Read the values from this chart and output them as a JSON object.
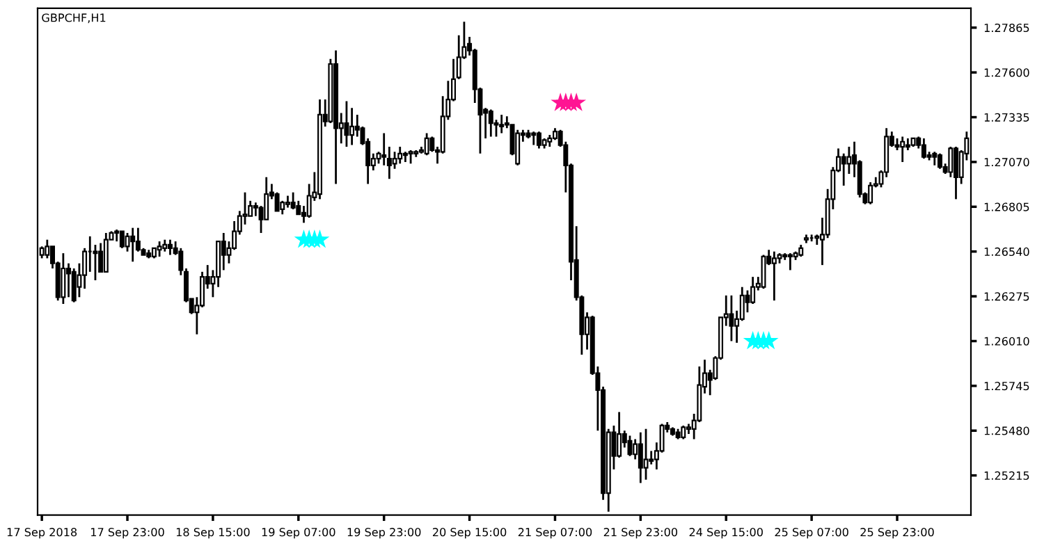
{
  "chart_data": {
    "type": "candlestick",
    "title": "GBPCHF,H1",
    "categories": [
      "17 Sep 2018",
      null,
      null,
      null,
      null,
      null,
      null,
      null,
      null,
      null,
      null,
      null,
      null,
      null,
      null,
      null,
      "17 Sep 23:00",
      null,
      null,
      null,
      null,
      null,
      null,
      null,
      null,
      null,
      null,
      null,
      null,
      null,
      null,
      null,
      "18 Sep 15:00",
      null,
      null,
      null,
      null,
      null,
      null,
      null,
      null,
      null,
      null,
      null,
      null,
      null,
      null,
      null,
      "19 Sep 07:00",
      null,
      null,
      null,
      null,
      null,
      null,
      null,
      null,
      null,
      null,
      null,
      null,
      null,
      null,
      null,
      "19 Sep 23:00",
      null,
      null,
      null,
      null,
      null,
      null,
      null,
      null,
      null,
      null,
      null,
      null,
      null,
      null,
      null,
      "20 Sep 15:00",
      null,
      null,
      null,
      null,
      null,
      null,
      null,
      null,
      null,
      null,
      null,
      null,
      null,
      null,
      null,
      "21 Sep 07:00",
      null,
      null,
      null,
      null,
      null,
      null,
      null,
      null,
      null,
      null,
      null,
      null,
      null,
      null,
      null,
      "21 Sep 23:00",
      null,
      null,
      null,
      null,
      null,
      null,
      null,
      null,
      null,
      null,
      null,
      null,
      null,
      null,
      null,
      "24 Sep 15:00",
      null,
      null,
      null,
      null,
      null,
      null,
      null,
      null,
      null,
      null,
      null,
      null,
      null,
      null,
      null,
      "25 Sep 07:00",
      null,
      null,
      null,
      null,
      null,
      null,
      null,
      null,
      null,
      null,
      null,
      null,
      null,
      null,
      null,
      "25 Sep 23:00",
      null,
      null,
      null,
      null,
      null,
      null,
      null,
      null,
      null,
      null,
      null,
      null,
      null
    ],
    "ohlc": [
      [
        1.2652,
        1.2657,
        1.265,
        1.2656
      ],
      [
        1.2652,
        1.2661,
        1.265,
        1.2657
      ],
      [
        1.2657,
        1.2657,
        1.2644,
        1.2647
      ],
      [
        1.2647,
        1.2648,
        1.2625,
        1.2627
      ],
      [
        1.2627,
        1.2653,
        1.2623,
        1.2644
      ],
      [
        1.2644,
        1.2647,
        1.2627,
        1.2641
      ],
      [
        1.2642,
        1.2644,
        1.2624,
        1.2625
      ],
      [
        1.2633,
        1.2647,
        1.2627,
        1.264
      ],
      [
        1.264,
        1.2656,
        1.2632,
        1.2654
      ],
      [
        1.2654,
        1.2663,
        1.2642,
        1.2654
      ],
      [
        1.2654,
        1.2658,
        1.2637,
        1.2653
      ],
      [
        1.2654,
        1.2659,
        1.2642,
        1.2642
      ],
      [
        1.2642,
        1.2665,
        1.2642,
        1.2661
      ],
      [
        1.2661,
        1.2666,
        1.2661,
        1.2665
      ],
      [
        1.2665,
        1.2667,
        1.266,
        1.2666
      ],
      [
        1.2666,
        1.2666,
        1.2656,
        1.2657
      ],
      [
        1.2657,
        1.2665,
        1.2654,
        1.2663
      ],
      [
        1.2663,
        1.2668,
        1.2648,
        1.266
      ],
      [
        1.266,
        1.2668,
        1.2654,
        1.2655
      ],
      [
        1.2655,
        1.2656,
        1.2652,
        1.2652
      ],
      [
        1.2653,
        1.2655,
        1.265,
        1.2651
      ],
      [
        1.2651,
        1.2656,
        1.265,
        1.2656
      ],
      [
        1.2655,
        1.266,
        1.2651,
        1.2657
      ],
      [
        1.2656,
        1.2661,
        1.2654,
        1.2658
      ],
      [
        1.2658,
        1.2661,
        1.2652,
        1.2656
      ],
      [
        1.2656,
        1.266,
        1.2652,
        1.2653
      ],
      [
        1.2654,
        1.2656,
        1.264,
        1.2643
      ],
      [
        1.2642,
        1.2644,
        1.2624,
        1.2625
      ],
      [
        1.2626,
        1.2626,
        1.2617,
        1.2618
      ],
      [
        1.2618,
        1.2627,
        1.2605,
        1.2622
      ],
      [
        1.2622,
        1.2642,
        1.2621,
        1.2639
      ],
      [
        1.2639,
        1.2646,
        1.2632,
        1.2635
      ],
      [
        1.2635,
        1.2643,
        1.2627,
        1.2639
      ],
      [
        1.2639,
        1.266,
        1.2633,
        1.266
      ],
      [
        1.266,
        1.2665,
        1.2643,
        1.2652
      ],
      [
        1.2652,
        1.266,
        1.2647,
        1.2656
      ],
      [
        1.2656,
        1.2672,
        1.2655,
        1.2666
      ],
      [
        1.2666,
        1.2678,
        1.2664,
        1.2675
      ],
      [
        1.2675,
        1.2689,
        1.267,
        1.2676
      ],
      [
        1.2675,
        1.2684,
        1.2675,
        1.2681
      ],
      [
        1.2681,
        1.2683,
        1.2675,
        1.268
      ],
      [
        1.268,
        1.2681,
        1.2665,
        1.2673
      ],
      [
        1.2673,
        1.2698,
        1.2673,
        1.2688
      ],
      [
        1.2689,
        1.2694,
        1.2685,
        1.2687
      ],
      [
        1.2688,
        1.2689,
        1.2678,
        1.2678
      ],
      [
        1.2679,
        1.2684,
        1.2676,
        1.2683
      ],
      [
        1.2682,
        1.2687,
        1.268,
        1.2683
      ],
      [
        1.2683,
        1.2689,
        1.2679,
        1.268
      ],
      [
        1.2681,
        1.2684,
        1.2676,
        1.2676
      ],
      [
        1.2677,
        1.2681,
        1.2671,
        1.2675
      ],
      [
        1.2675,
        1.2694,
        1.2674,
        1.2687
      ],
      [
        1.2686,
        1.2701,
        1.2684,
        1.2689
      ],
      [
        1.2688,
        1.2744,
        1.2685,
        1.2735
      ],
      [
        1.2735,
        1.2744,
        1.2728,
        1.2731
      ],
      [
        1.2731,
        1.2768,
        1.273,
        1.2765
      ],
      [
        1.2765,
        1.2773,
        1.2694,
        1.2727
      ],
      [
        1.2727,
        1.2736,
        1.2718,
        1.273
      ],
      [
        1.273,
        1.2743,
        1.2716,
        1.2723
      ],
      [
        1.2723,
        1.2739,
        1.2717,
        1.2728
      ],
      [
        1.2728,
        1.2735,
        1.2722,
        1.2726
      ],
      [
        1.2727,
        1.2728,
        1.2717,
        1.2718
      ],
      [
        1.2719,
        1.2721,
        1.2694,
        1.2705
      ],
      [
        1.2705,
        1.2712,
        1.2702,
        1.2709
      ],
      [
        1.2709,
        1.2713,
        1.2706,
        1.2712
      ],
      [
        1.2711,
        1.2724,
        1.2705,
        1.271
      ],
      [
        1.2709,
        1.2716,
        1.2697,
        1.2705
      ],
      [
        1.2706,
        1.2713,
        1.2703,
        1.2709
      ],
      [
        1.2709,
        1.2716,
        1.2706,
        1.2712
      ],
      [
        1.2712,
        1.2713,
        1.2707,
        1.2711
      ],
      [
        1.2712,
        1.2714,
        1.2706,
        1.2713
      ],
      [
        1.2712,
        1.2714,
        1.271,
        1.2713
      ],
      [
        1.2713,
        1.2716,
        1.2712,
        1.2714
      ],
      [
        1.2712,
        1.2724,
        1.2711,
        1.2721
      ],
      [
        1.2721,
        1.2722,
        1.2713,
        1.2714
      ],
      [
        1.2714,
        1.2716,
        1.2706,
        1.2713
      ],
      [
        1.2713,
        1.2746,
        1.2712,
        1.2734
      ],
      [
        1.2734,
        1.2755,
        1.2732,
        1.2744
      ],
      [
        1.2744,
        1.2768,
        1.2743,
        1.2756
      ],
      [
        1.2757,
        1.2782,
        1.2756,
        1.2769
      ],
      [
        1.2769,
        1.279,
        1.2768,
        1.2775
      ],
      [
        1.2777,
        1.2781,
        1.277,
        1.2773
      ],
      [
        1.2773,
        1.2774,
        1.2742,
        1.275
      ],
      [
        1.275,
        1.2751,
        1.2712,
        1.2735
      ],
      [
        1.2738,
        1.2739,
        1.2721,
        1.2736
      ],
      [
        1.2737,
        1.2738,
        1.2722,
        1.273
      ],
      [
        1.273,
        1.2732,
        1.2722,
        1.2729
      ],
      [
        1.2729,
        1.2735,
        1.2724,
        1.2728
      ],
      [
        1.2729,
        1.2734,
        1.2727,
        1.273
      ],
      [
        1.2729,
        1.2729,
        1.2711,
        1.2712
      ],
      [
        1.2706,
        1.2726,
        1.2705,
        1.2724
      ],
      [
        1.2724,
        1.2726,
        1.2719,
        1.2723
      ],
      [
        1.2724,
        1.2726,
        1.2721,
        1.2722
      ],
      [
        1.2724,
        1.2725,
        1.2717,
        1.2723
      ],
      [
        1.2724,
        1.2725,
        1.2715,
        1.2717
      ],
      [
        1.2717,
        1.2721,
        1.2715,
        1.272
      ],
      [
        1.2719,
        1.2723,
        1.2716,
        1.2721
      ],
      [
        1.2721,
        1.2727,
        1.272,
        1.2725
      ],
      [
        1.2725,
        1.2726,
        1.2716,
        1.2717
      ],
      [
        1.2717,
        1.2719,
        1.2689,
        1.2705
      ],
      [
        1.2705,
        1.2706,
        1.2637,
        1.2648
      ],
      [
        1.2649,
        1.2669,
        1.2625,
        1.2627
      ],
      [
        1.2627,
        1.2628,
        1.2593,
        1.2605
      ],
      [
        1.2605,
        1.2618,
        1.2596,
        1.2615
      ],
      [
        1.2615,
        1.2616,
        1.2581,
        1.2582
      ],
      [
        1.2582,
        1.2586,
        1.2548,
        1.2572
      ],
      [
        1.2572,
        1.2574,
        1.2507,
        1.2511
      ],
      [
        1.2511,
        1.2549,
        1.25,
        1.2547
      ],
      [
        1.2547,
        1.2551,
        1.2525,
        1.2533
      ],
      [
        1.2533,
        1.2559,
        1.2532,
        1.2546
      ],
      [
        1.2546,
        1.2548,
        1.2538,
        1.2541
      ],
      [
        1.2542,
        1.2545,
        1.2533,
        1.2534
      ],
      [
        1.2534,
        1.2543,
        1.2531,
        1.254
      ],
      [
        1.254,
        1.2547,
        1.2517,
        1.2526
      ],
      [
        1.2526,
        1.2549,
        1.2519,
        1.2531
      ],
      [
        1.2531,
        1.2536,
        1.2528,
        1.253
      ],
      [
        1.2531,
        1.2541,
        1.2525,
        1.2536
      ],
      [
        1.2536,
        1.2552,
        1.2535,
        1.2551
      ],
      [
        1.2551,
        1.2553,
        1.2547,
        1.2549
      ],
      [
        1.2549,
        1.255,
        1.2545,
        1.2546
      ],
      [
        1.2547,
        1.2549,
        1.2543,
        1.2544
      ],
      [
        1.2544,
        1.2551,
        1.2543,
        1.255
      ],
      [
        1.2549,
        1.2552,
        1.2546,
        1.255
      ],
      [
        1.2549,
        1.2558,
        1.2543,
        1.2554
      ],
      [
        1.2554,
        1.2586,
        1.2553,
        1.2575
      ],
      [
        1.2574,
        1.259,
        1.257,
        1.2582
      ],
      [
        1.2582,
        1.2584,
        1.2569,
        1.2578
      ],
      [
        1.2579,
        1.2592,
        1.2578,
        1.2591
      ],
      [
        1.2591,
        1.2615,
        1.259,
        1.2615
      ],
      [
        1.2615,
        1.2628,
        1.261,
        1.2617
      ],
      [
        1.2617,
        1.2628,
        1.2601,
        1.261
      ],
      [
        1.261,
        1.2619,
        1.26,
        1.2614
      ],
      [
        1.2614,
        1.2633,
        1.2613,
        1.2628
      ],
      [
        1.2628,
        1.2631,
        1.2618,
        1.2624
      ],
      [
        1.2624,
        1.2639,
        1.2623,
        1.2633
      ],
      [
        1.2633,
        1.2639,
        1.2631,
        1.2635
      ],
      [
        1.2633,
        1.2652,
        1.2632,
        1.2651
      ],
      [
        1.2651,
        1.2655,
        1.2646,
        1.2647
      ],
      [
        1.2647,
        1.2654,
        1.2625,
        1.265
      ],
      [
        1.265,
        1.2653,
        1.2647,
        1.2652
      ],
      [
        1.2652,
        1.2653,
        1.2649,
        1.2651
      ],
      [
        1.2651,
        1.2653,
        1.2643,
        1.2652
      ],
      [
        1.2651,
        1.2654,
        1.2649,
        1.2653
      ],
      [
        1.2652,
        1.2658,
        1.2651,
        1.2656
      ],
      [
        1.2661,
        1.2664,
        1.2659,
        1.2662
      ],
      [
        1.2662,
        1.2664,
        1.266,
        1.2662
      ],
      [
        1.2662,
        1.2664,
        1.2658,
        1.2663
      ],
      [
        1.2661,
        1.2674,
        1.2646,
        1.2664
      ],
      [
        1.2664,
        1.2691,
        1.2662,
        1.2685
      ],
      [
        1.2685,
        1.2704,
        1.2679,
        1.2702
      ],
      [
        1.2702,
        1.2715,
        1.2701,
        1.271
      ],
      [
        1.271,
        1.2712,
        1.2693,
        1.2706
      ],
      [
        1.2706,
        1.2716,
        1.27,
        1.271
      ],
      [
        1.2711,
        1.2719,
        1.2698,
        1.2706
      ],
      [
        1.2707,
        1.2708,
        1.2686,
        1.2688
      ],
      [
        1.2688,
        1.2689,
        1.2682,
        1.2683
      ],
      [
        1.2683,
        1.2695,
        1.2682,
        1.2693
      ],
      [
        1.2693,
        1.2698,
        1.2692,
        1.2694
      ],
      [
        1.2694,
        1.2702,
        1.2692,
        1.2701
      ],
      [
        1.2701,
        1.2727,
        1.2698,
        1.2722
      ],
      [
        1.2722,
        1.2725,
        1.2716,
        1.2717
      ],
      [
        1.2717,
        1.2721,
        1.2714,
        1.2716
      ],
      [
        1.2716,
        1.2722,
        1.2707,
        1.2719
      ],
      [
        1.2717,
        1.2721,
        1.2714,
        1.2716
      ],
      [
        1.2717,
        1.2721,
        1.2716,
        1.2721
      ],
      [
        1.2721,
        1.2722,
        1.2715,
        1.2717
      ],
      [
        1.2717,
        1.2721,
        1.2709,
        1.271
      ],
      [
        1.2711,
        1.2713,
        1.2708,
        1.271
      ],
      [
        1.2712,
        1.2713,
        1.2705,
        1.271
      ],
      [
        1.2711,
        1.2712,
        1.2703,
        1.2704
      ],
      [
        1.2704,
        1.2706,
        1.27,
        1.2701
      ],
      [
        1.2701,
        1.2716,
        1.2698,
        1.2715
      ],
      [
        1.2715,
        1.2716,
        1.2685,
        1.2698
      ],
      [
        1.2698,
        1.2714,
        1.2694,
        1.2713
      ],
      [
        1.2712,
        1.2725,
        1.2708,
        1.2721
      ]
    ],
    "series": [
      {
        "type": "scatter",
        "color": "#00ffff",
        "values": [
          null,
          null,
          null,
          null,
          null,
          null,
          null,
          null,
          null,
          null,
          null,
          null,
          null,
          null,
          null,
          null,
          null,
          null,
          null,
          null,
          null,
          null,
          null,
          null,
          null,
          null,
          null,
          null,
          null,
          null,
          null,
          null,
          null,
          null,
          null,
          null,
          null,
          null,
          null,
          null,
          null,
          null,
          null,
          null,
          null,
          null,
          null,
          null,
          null,
          1.2661,
          1.2661,
          1.2661,
          1.2661,
          null,
          null,
          null,
          null,
          null,
          null,
          null,
          null,
          null,
          null,
          null,
          null,
          null,
          null,
          null,
          null,
          null,
          null,
          null,
          null,
          null,
          null,
          null,
          null,
          null,
          null,
          null,
          null,
          null,
          null,
          null,
          null,
          null,
          null,
          null,
          null,
          null,
          null,
          null,
          null,
          null,
          null,
          null,
          null,
          null,
          null,
          null,
          null,
          null,
          null,
          null,
          null,
          null,
          null,
          null,
          null,
          null,
          null,
          null,
          null,
          null,
          null,
          null,
          null,
          null,
          null,
          null,
          null,
          null,
          null,
          null,
          null,
          null,
          null,
          null,
          null,
          null,
          null,
          null,
          null,
          1.2601,
          1.2601,
          1.2601,
          1.2601,
          null,
          null,
          null,
          null,
          null,
          null,
          null,
          null,
          null,
          null,
          null,
          null,
          null,
          null,
          null,
          null,
          null,
          null,
          null,
          null,
          null,
          null,
          null,
          null,
          null,
          null,
          null,
          null,
          null,
          null,
          null,
          null,
          null,
          null,
          null,
          null,
          null
        ]
      },
      {
        "type": "scatter",
        "color": "#ff1493",
        "values": [
          null,
          null,
          null,
          null,
          null,
          null,
          null,
          null,
          null,
          null,
          null,
          null,
          null,
          null,
          null,
          null,
          null,
          null,
          null,
          null,
          null,
          null,
          null,
          null,
          null,
          null,
          null,
          null,
          null,
          null,
          null,
          null,
          null,
          null,
          null,
          null,
          null,
          null,
          null,
          null,
          null,
          null,
          null,
          null,
          null,
          null,
          null,
          null,
          null,
          null,
          null,
          null,
          null,
          null,
          null,
          null,
          null,
          null,
          null,
          null,
          null,
          null,
          null,
          null,
          null,
          null,
          null,
          null,
          null,
          null,
          null,
          null,
          null,
          null,
          null,
          null,
          null,
          null,
          null,
          null,
          null,
          null,
          null,
          null,
          null,
          null,
          null,
          null,
          null,
          null,
          null,
          null,
          null,
          null,
          null,
          null,
          null,
          1.2742,
          1.2742,
          1.2742,
          1.2742,
          null,
          null,
          null,
          null,
          null,
          null,
          null,
          null,
          null,
          null,
          null,
          null,
          null,
          null,
          null,
          null,
          null,
          null,
          null,
          null,
          null,
          null,
          null,
          null,
          null,
          null,
          null,
          null,
          null,
          null,
          null,
          null,
          null,
          null,
          null,
          null,
          null,
          null,
          null,
          null,
          null,
          null,
          null,
          null,
          null,
          null,
          null,
          null,
          null,
          null,
          null,
          null,
          null,
          null,
          null,
          null,
          null,
          null,
          null,
          null,
          null,
          null,
          null,
          null,
          null,
          null,
          null,
          null,
          null,
          null,
          null,
          null,
          null
        ]
      }
    ],
    "marker": "star",
    "ylim": [
      1.2498,
      1.2798
    ],
    "yticks": [
      1.27865,
      {
        "value": 1.276,
        "label": "1.27600"
      },
      1.27335,
      {
        "value": 1.2707,
        "label": "1.27070"
      },
      1.26805,
      {
        "value": 1.2654,
        "label": "1.26540"
      },
      1.26275,
      {
        "value": 1.2601,
        "label": "1.26010"
      },
      1.25745,
      {
        "value": 1.2548,
        "label": "1.25480"
      },
      1.25215
    ],
    "grid": false
  }
}
